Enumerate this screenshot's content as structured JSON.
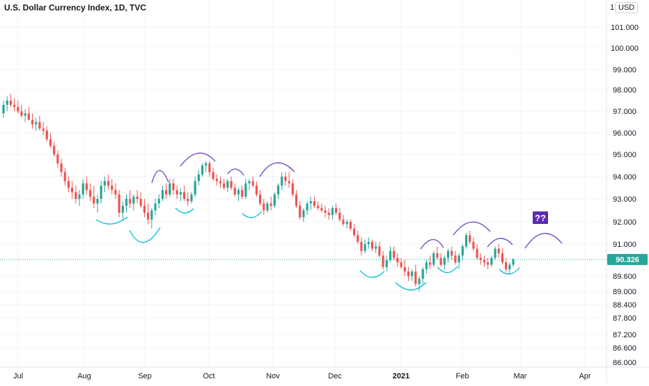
{
  "chart_title": "U.S. Dollar Currency Index, 1D, TVC",
  "currency_button": "USD",
  "price_scale_top_fragment": "1",
  "last_price_label": "90.326",
  "annotation_label": "??",
  "colors": {
    "up": "#26a69a",
    "down": "#ef5350",
    "current_line": "#26a69a",
    "annotation_purple": "#6a3fc1",
    "annotation_cyan": "#00bcd4",
    "badge_bg": "#5b2bb5",
    "grid": "#f0f3fa"
  },
  "chart_data": {
    "type": "candlestick",
    "title": "U.S. Dollar Currency Index, 1D, TVC",
    "x_axis_ticks": [
      "Jul",
      "Aug",
      "Sep",
      "Oct",
      "Nov",
      "Dec",
      "2021",
      "Feb",
      "Mar",
      "Apr"
    ],
    "y_axis_ticks": [
      "101.000",
      "100.000",
      "99.000",
      "98.000",
      "97.000",
      "96.000",
      "95.000",
      "94.000",
      "93.000",
      "92.000",
      "91.000",
      "89.600",
      "89.000",
      "88.400",
      "87.800",
      "87.200",
      "86.600",
      "86.000"
    ],
    "ylim": [
      85.8,
      101.7
    ],
    "last_price": 90.326,
    "grid": true,
    "series": [
      {
        "candles_ohlc": [
          [
            96.9,
            97.5,
            96.7,
            97.3
          ],
          [
            97.3,
            97.7,
            97.0,
            97.5
          ],
          [
            97.5,
            97.8,
            97.2,
            97.3
          ],
          [
            97.3,
            97.6,
            97.0,
            97.2
          ],
          [
            97.2,
            97.5,
            96.9,
            97.0
          ],
          [
            97.0,
            97.3,
            96.7,
            96.8
          ],
          [
            96.8,
            97.1,
            96.5,
            96.9
          ],
          [
            96.9,
            97.2,
            96.6,
            96.6
          ],
          [
            96.6,
            96.9,
            96.2,
            96.4
          ],
          [
            96.4,
            96.7,
            96.1,
            96.5
          ],
          [
            96.5,
            96.8,
            96.1,
            96.2
          ],
          [
            96.2,
            96.5,
            95.9,
            96.1
          ],
          [
            96.1,
            96.3,
            95.6,
            95.7
          ],
          [
            95.7,
            96.0,
            95.3,
            95.4
          ],
          [
            95.4,
            95.6,
            94.9,
            95.0
          ],
          [
            95.0,
            95.2,
            94.4,
            94.6
          ],
          [
            94.6,
            94.8,
            94.0,
            94.2
          ],
          [
            94.2,
            94.4,
            93.6,
            93.8
          ],
          [
            93.8,
            94.0,
            93.3,
            93.5
          ],
          [
            93.5,
            93.8,
            93.0,
            93.3
          ],
          [
            93.3,
            93.6,
            92.8,
            93.0
          ],
          [
            93.0,
            93.4,
            92.7,
            93.2
          ],
          [
            93.2,
            93.9,
            93.0,
            93.7
          ],
          [
            93.7,
            94.0,
            93.2,
            93.4
          ],
          [
            93.4,
            93.7,
            92.9,
            93.1
          ],
          [
            93.1,
            93.6,
            92.6,
            92.8
          ],
          [
            92.8,
            93.2,
            92.4,
            93.0
          ],
          [
            93.0,
            93.8,
            92.8,
            93.6
          ],
          [
            93.6,
            94.0,
            93.3,
            93.8
          ],
          [
            93.8,
            94.1,
            93.4,
            93.6
          ],
          [
            93.6,
            93.9,
            93.2,
            93.4
          ],
          [
            93.4,
            93.7,
            93.0,
            93.2
          ],
          [
            93.2,
            93.4,
            92.2,
            92.4
          ],
          [
            92.4,
            92.9,
            92.1,
            92.7
          ],
          [
            92.7,
            93.2,
            92.4,
            93.0
          ],
          [
            93.0,
            93.4,
            92.6,
            92.8
          ],
          [
            92.8,
            93.2,
            92.5,
            93.1
          ],
          [
            93.1,
            93.4,
            92.8,
            93.0
          ],
          [
            93.0,
            93.3,
            92.6,
            92.7
          ],
          [
            92.7,
            93.0,
            92.2,
            92.4
          ],
          [
            92.4,
            92.8,
            91.9,
            92.1
          ],
          [
            92.1,
            92.6,
            91.7,
            92.5
          ],
          [
            92.5,
            93.0,
            92.3,
            92.8
          ],
          [
            92.8,
            93.2,
            92.6,
            93.0
          ],
          [
            93.0,
            93.6,
            92.9,
            93.4
          ],
          [
            93.4,
            93.7,
            93.0,
            93.2
          ],
          [
            93.2,
            93.9,
            93.1,
            93.7
          ],
          [
            93.7,
            93.9,
            93.2,
            93.4
          ],
          [
            93.4,
            93.6,
            93.0,
            93.2
          ],
          [
            93.2,
            93.5,
            92.9,
            93.3
          ],
          [
            93.3,
            93.6,
            92.9,
            93.0
          ],
          [
            93.0,
            93.3,
            92.7,
            92.9
          ],
          [
            92.9,
            93.3,
            92.8,
            93.2
          ],
          [
            93.2,
            94.0,
            93.1,
            93.8
          ],
          [
            93.8,
            94.3,
            93.6,
            94.1
          ],
          [
            94.1,
            94.6,
            94.0,
            94.5
          ],
          [
            94.5,
            94.7,
            94.2,
            94.6
          ],
          [
            94.6,
            94.7,
            94.0,
            94.2
          ],
          [
            94.2,
            94.4,
            93.8,
            93.9
          ],
          [
            93.9,
            94.1,
            93.6,
            93.8
          ],
          [
            93.8,
            94.0,
            93.5,
            93.7
          ],
          [
            93.7,
            93.9,
            93.4,
            93.5
          ],
          [
            93.5,
            93.9,
            93.3,
            93.8
          ],
          [
            93.8,
            94.0,
            93.4,
            93.5
          ],
          [
            93.5,
            93.7,
            93.1,
            93.2
          ],
          [
            93.2,
            93.5,
            92.9,
            93.4
          ],
          [
            93.4,
            93.6,
            93.0,
            93.1
          ],
          [
            93.1,
            93.9,
            93.0,
            93.7
          ],
          [
            93.7,
            93.9,
            93.4,
            93.8
          ],
          [
            93.8,
            94.0,
            93.5,
            93.6
          ],
          [
            93.6,
            93.8,
            93.1,
            93.2
          ],
          [
            93.2,
            93.4,
            92.7,
            92.8
          ],
          [
            92.8,
            93.0,
            92.3,
            92.5
          ],
          [
            92.5,
            92.9,
            92.4,
            92.8
          ],
          [
            92.8,
            93.1,
            92.5,
            92.7
          ],
          [
            92.7,
            93.3,
            92.6,
            93.2
          ],
          [
            93.2,
            93.7,
            93.0,
            93.6
          ],
          [
            93.6,
            94.2,
            93.4,
            94.0
          ],
          [
            94.0,
            94.2,
            93.6,
            93.8
          ],
          [
            93.8,
            94.2,
            93.5,
            93.7
          ],
          [
            93.7,
            93.9,
            93.1,
            93.2
          ],
          [
            93.2,
            93.4,
            92.6,
            92.7
          ],
          [
            92.7,
            92.9,
            92.1,
            92.2
          ],
          [
            92.2,
            92.6,
            92.0,
            92.5
          ],
          [
            92.5,
            92.9,
            92.3,
            92.8
          ],
          [
            92.8,
            93.1,
            92.5,
            92.9
          ],
          [
            92.9,
            93.1,
            92.6,
            92.7
          ],
          [
            92.7,
            92.9,
            92.5,
            92.6
          ],
          [
            92.6,
            92.8,
            92.4,
            92.5
          ],
          [
            92.5,
            92.7,
            92.2,
            92.4
          ],
          [
            92.4,
            92.6,
            92.1,
            92.3
          ],
          [
            92.3,
            92.7,
            92.1,
            92.6
          ],
          [
            92.6,
            92.8,
            92.3,
            92.4
          ],
          [
            92.4,
            92.6,
            92.0,
            92.1
          ],
          [
            92.1,
            92.3,
            91.8,
            91.9
          ],
          [
            91.9,
            92.1,
            91.7,
            92.0
          ],
          [
            92.0,
            92.1,
            91.6,
            91.7
          ],
          [
            91.7,
            91.9,
            91.3,
            91.4
          ],
          [
            91.4,
            91.6,
            91.0,
            91.1
          ],
          [
            91.1,
            91.3,
            90.5,
            90.7
          ],
          [
            90.7,
            91.2,
            90.6,
            91.0
          ],
          [
            91.0,
            91.3,
            90.8,
            91.1
          ],
          [
            91.1,
            91.2,
            90.7,
            90.8
          ],
          [
            90.8,
            91.1,
            90.6,
            90.9
          ],
          [
            90.9,
            91.1,
            90.4,
            90.5
          ],
          [
            90.5,
            90.7,
            89.9,
            90.0
          ],
          [
            90.0,
            90.5,
            89.8,
            90.3
          ],
          [
            90.3,
            90.9,
            90.2,
            90.7
          ],
          [
            90.7,
            90.9,
            90.3,
            90.4
          ],
          [
            90.4,
            90.6,
            90.0,
            90.2
          ],
          [
            90.2,
            90.4,
            89.9,
            90.0
          ],
          [
            90.0,
            90.3,
            89.6,
            89.8
          ],
          [
            89.8,
            90.0,
            89.4,
            89.6
          ],
          [
            89.6,
            89.9,
            89.4,
            89.8
          ],
          [
            89.8,
            90.1,
            89.2,
            89.3
          ],
          [
            89.3,
            89.6,
            89.0,
            89.5
          ],
          [
            89.5,
            90.0,
            89.3,
            89.9
          ],
          [
            89.9,
            90.3,
            89.7,
            90.2
          ],
          [
            90.2,
            90.5,
            89.9,
            90.1
          ],
          [
            90.1,
            90.7,
            90.0,
            90.6
          ],
          [
            90.6,
            90.9,
            90.3,
            90.4
          ],
          [
            90.4,
            90.6,
            90.0,
            90.1
          ],
          [
            90.1,
            90.5,
            89.9,
            90.4
          ],
          [
            90.4,
            90.8,
            90.2,
            90.7
          ],
          [
            90.7,
            90.9,
            90.3,
            90.5
          ],
          [
            90.5,
            90.7,
            90.1,
            90.2
          ],
          [
            90.2,
            90.6,
            89.9,
            90.5
          ],
          [
            90.5,
            91.0,
            90.3,
            90.9
          ],
          [
            90.9,
            91.5,
            90.8,
            91.4
          ],
          [
            91.4,
            91.6,
            91.0,
            91.1
          ],
          [
            91.1,
            91.3,
            90.7,
            90.8
          ],
          [
            90.8,
            91.0,
            90.3,
            90.4
          ],
          [
            90.4,
            90.6,
            90.1,
            90.3
          ],
          [
            90.3,
            90.5,
            90.0,
            90.2
          ],
          [
            90.2,
            90.4,
            89.9,
            90.1
          ],
          [
            90.1,
            90.5,
            90.0,
            90.4
          ],
          [
            90.4,
            90.9,
            90.3,
            90.8
          ],
          [
            90.8,
            91.0,
            90.4,
            90.6
          ],
          [
            90.6,
            90.8,
            90.1,
            90.2
          ],
          [
            90.2,
            90.4,
            89.8,
            89.9
          ],
          [
            89.9,
            90.2,
            89.7,
            90.1
          ],
          [
            90.1,
            90.4,
            90.0,
            90.326
          ]
        ]
      }
    ]
  }
}
